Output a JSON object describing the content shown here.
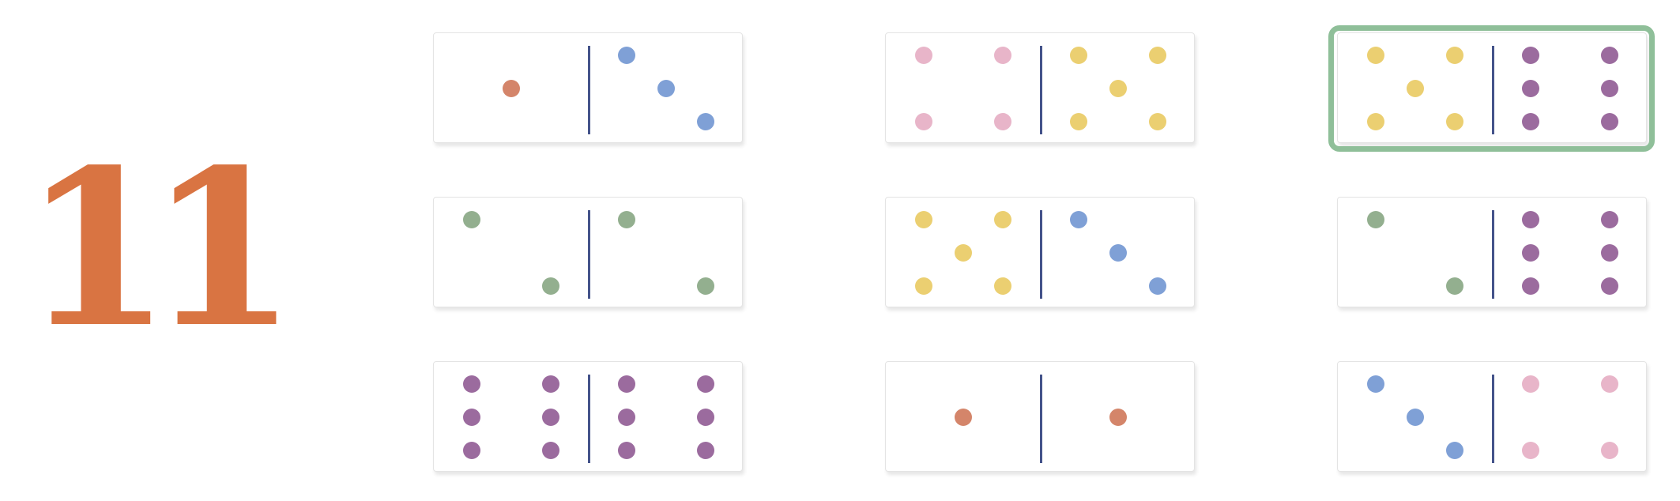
{
  "target": {
    "value": "11"
  },
  "colors": {
    "1": "#d4856a",
    "2": "#93af8f",
    "3": "#7fa0d6",
    "4": "#e8b5c9",
    "5": "#ebcf71",
    "6": "#9b6b9e",
    "divider": "#44538a",
    "target": "#d97442",
    "selection": "#8fbf99"
  },
  "dominoes": [
    {
      "name": "domino-1-3",
      "left": 1,
      "right": 3,
      "selected": false
    },
    {
      "name": "domino-4-5",
      "left": 4,
      "right": 5,
      "selected": false
    },
    {
      "name": "domino-5-6",
      "left": 5,
      "right": 6,
      "selected": true
    },
    {
      "name": "domino-2-2",
      "left": 2,
      "right": 2,
      "selected": false
    },
    {
      "name": "domino-5-3",
      "left": 5,
      "right": 3,
      "selected": false
    },
    {
      "name": "domino-2-6",
      "left": 2,
      "right": 6,
      "selected": false
    },
    {
      "name": "domino-6-6",
      "left": 6,
      "right": 6,
      "selected": false
    },
    {
      "name": "domino-1-1",
      "left": 1,
      "right": 1,
      "selected": false
    },
    {
      "name": "domino-3-4",
      "left": 3,
      "right": 4,
      "selected": false
    }
  ]
}
